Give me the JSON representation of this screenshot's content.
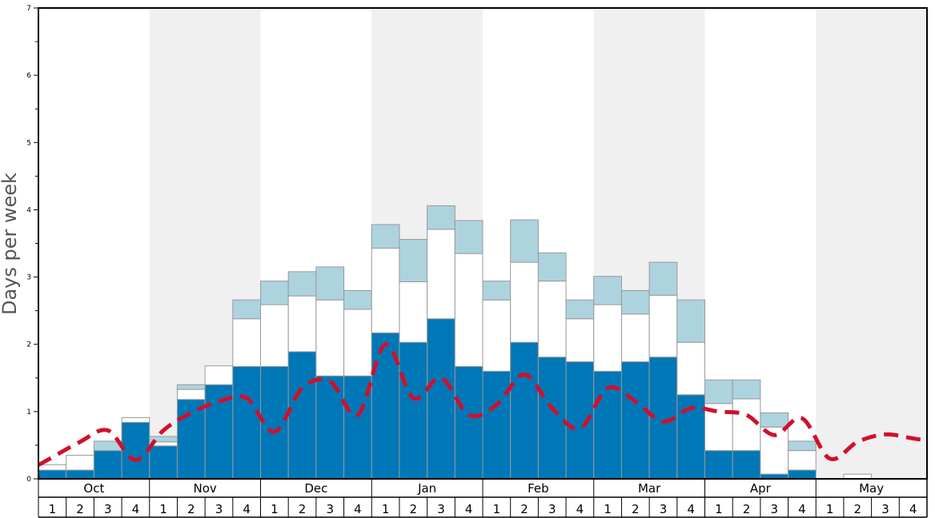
{
  "chart_data": {
    "type": "bar",
    "ylabel": "Days per week",
    "ylim": [
      0,
      7
    ],
    "y_ticks": [
      "0",
      "1",
      "2",
      "3",
      "4",
      "5",
      "6",
      "7"
    ],
    "months": [
      "Oct",
      "Nov",
      "Dec",
      "Jan",
      "Feb",
      "Mar",
      "Apr",
      "May"
    ],
    "weeks": [
      "1",
      "2",
      "3",
      "4"
    ],
    "shaded_months": [
      "Nov",
      "Jan",
      "Mar",
      "May"
    ],
    "colors": {
      "dark": "#0077b6",
      "white": "#ffffff",
      "light": "#add3df",
      "line": "#d0102c",
      "shade": "#f0f0f0",
      "bar_edge": "#999999"
    },
    "series": [
      {
        "values": [
          0.13,
          0.13,
          0.42,
          0.84,
          0.49,
          1.18,
          1.4,
          1.67,
          1.67,
          1.89,
          1.53,
          1.53,
          2.17,
          2.03,
          2.38,
          1.67,
          1.6,
          2.03,
          1.81,
          1.74,
          1.6,
          1.74,
          1.81,
          1.25,
          0.42,
          0.42,
          0.07,
          0.13,
          0,
          0,
          0,
          0
        ]
      },
      {
        "values": [
          0.08,
          0.22,
          0,
          0.07,
          0.06,
          0.15,
          0.28,
          0.71,
          0.92,
          0.83,
          1.13,
          0.99,
          1.26,
          0.9,
          1.33,
          1.68,
          1.06,
          1.19,
          1.13,
          0.64,
          0.99,
          0.71,
          0.92,
          0.78,
          0.7,
          0.77,
          0.7,
          0.29,
          0,
          0.07,
          0,
          0
        ]
      },
      {
        "values": [
          0,
          0,
          0.14,
          0,
          0.08,
          0.07,
          0,
          0.28,
          0.35,
          0.36,
          0.49,
          0.28,
          0.35,
          0.63,
          0.35,
          0.49,
          0.28,
          0.63,
          0.42,
          0.28,
          0.42,
          0.35,
          0.49,
          0.63,
          0.35,
          0.28,
          0.21,
          0.14,
          0,
          0,
          0,
          0
        ]
      },
      {
        "values": [
          0.32,
          0.55,
          0.72,
          0.28,
          0.72,
          0.98,
          1.15,
          1.2,
          0.7,
          1.35,
          1.45,
          0.95,
          2.0,
          1.2,
          1.5,
          0.95,
          1.1,
          1.55,
          1.05,
          0.75,
          1.35,
          1.15,
          0.85,
          1.05,
          1.0,
          0.95,
          0.65,
          0.9,
          0.3,
          0.55,
          0.66,
          0.6
        ]
      }
    ]
  }
}
